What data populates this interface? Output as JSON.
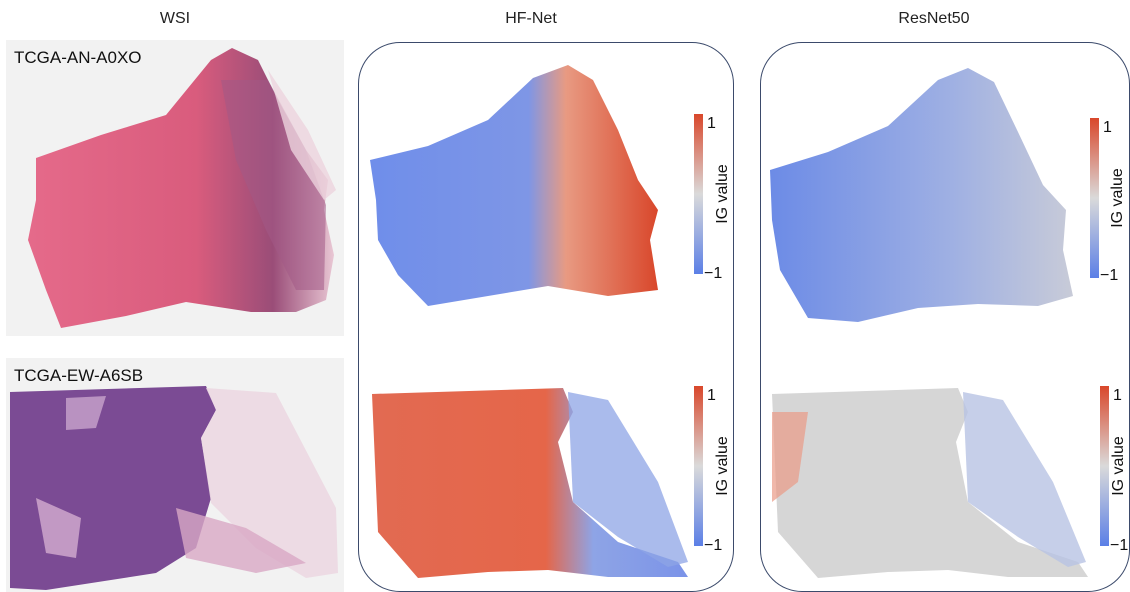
{
  "columns": {
    "wsi": "WSI",
    "hfnet": "HF-Net",
    "resnet": "ResNet50"
  },
  "samples": [
    {
      "id": "TCGA-AN-A0XO"
    },
    {
      "id": "TCGA-EW-A6SB"
    }
  ],
  "colorbar": {
    "label": "IG value",
    "max_label": "1",
    "min_label": "−1",
    "color_high": "#d9472b",
    "color_mid": "#dadada",
    "color_low": "#5b7fe6"
  },
  "colors": {
    "he_pink": "#d75c7e",
    "he_purple": "#7d4f93",
    "ig_high": "#dd4a2e",
    "ig_mid": "#d8d8d8",
    "ig_low": "#6f8eea"
  }
}
